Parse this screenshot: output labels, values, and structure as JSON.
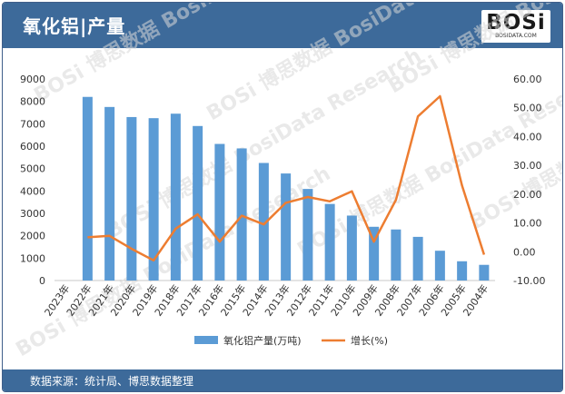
{
  "header": {
    "title": "氧化铝|产量"
  },
  "logo": {
    "text": "BOSi",
    "sub": "BOSIDATA.COM"
  },
  "footer": {
    "source": "数据来源：统计局、博思数据整理"
  },
  "watermark": {
    "text": "BOSi 博思数据 BosiData Research"
  },
  "colors": {
    "bar": "#5b9bd5",
    "line": "#ed7d31",
    "header": "#3d6a9a"
  },
  "chart_data": {
    "type": "bar",
    "categories": [
      "2023年",
      "2022年",
      "2021年",
      "2020年",
      "2019年",
      "2018年",
      "2017年",
      "2016年",
      "2015年",
      "2014年",
      "2013年",
      "2012年",
      "2011年",
      "2010年",
      "2009年",
      "2008年",
      "2007年",
      "2006年",
      "2005年",
      "2004年"
    ],
    "series": [
      {
        "name": "氧化铝产量(万吨)",
        "type": "bar",
        "axis": "left",
        "values": [
          null,
          8200,
          7750,
          7300,
          7250,
          7450,
          6900,
          6100,
          5900,
          5250,
          4780,
          4090,
          3420,
          2900,
          2400,
          2280,
          1950,
          1330,
          860,
          700
        ]
      },
      {
        "name": "增长(%)",
        "type": "line",
        "axis": "right",
        "values": [
          null,
          5.0,
          5.5,
          1.0,
          -3.0,
          8.0,
          13.0,
          3.5,
          12.5,
          9.5,
          17.0,
          19.0,
          17.5,
          21.0,
          3.5,
          18.0,
          47.0,
          54.0,
          23.0,
          -1.0
        ]
      }
    ],
    "y_left": {
      "min": 0,
      "max": 9000,
      "ticks": [
        "0",
        "1000",
        "2000",
        "3000",
        "4000",
        "5000",
        "6000",
        "7000",
        "8000",
        "9000"
      ]
    },
    "y_right": {
      "min": -10,
      "max": 60,
      "ticks": [
        "-10.00",
        "0.00",
        "10.00",
        "20.00",
        "30.00",
        "40.00",
        "50.00",
        "60.00"
      ]
    },
    "grid": false,
    "legend": "bottom"
  }
}
